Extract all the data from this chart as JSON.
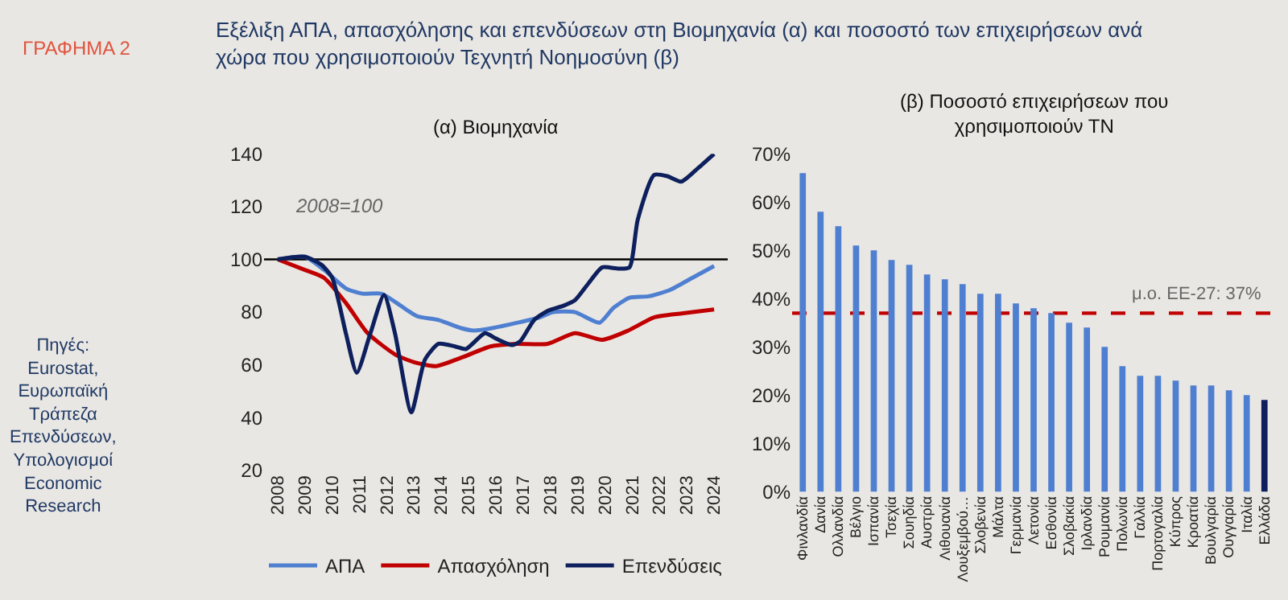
{
  "chart_data": [
    {
      "type": "line",
      "title": "(α) Βιομηχανία",
      "annotations": [
        "ΓΡΑΦΗΜΑ 2",
        "Εξέλιξη ΑΠΑ, απασχόλησης και επενδύσεων στη Βιομηχανία (α) και ποσοστό των επιχειρήσεων ανά χώρα που χρησιμοποιούν Τεχνητή Νοημοσύνη (β)",
        "Πηγές: Eurostat, Ευρωπαϊκή Τράπεζα Επενδύσεων, Υπολογισμοί Economic Research",
        "2008=100"
      ],
      "xlim": [
        2007.5,
        2024.5
      ],
      "xticks": [
        2008,
        2009,
        2010,
        2011,
        2012,
        2013,
        2014,
        2015,
        2016,
        2017,
        2018,
        2019,
        2020,
        2021,
        2022,
        2023,
        2024
      ],
      "ylim": [
        20,
        140
      ],
      "yticks": [
        20,
        40,
        60,
        80,
        100,
        120,
        140
      ],
      "legend": "bottom",
      "ref_lines": [
        {
          "axis": "y",
          "value": 100,
          "color": "#000000",
          "line_style": "solid"
        }
      ],
      "series": [
        {
          "name": "ΑΠΑ",
          "color": "#4f7fd0",
          "x": [
            2008,
            2009,
            2009.7,
            2010.5,
            2011.1,
            2011.8,
            2012.5,
            2013.1,
            2013.9,
            2014.7,
            2015.2,
            2015.9,
            2016.8,
            2017.6,
            2018.1,
            2018.9,
            2019.8,
            2020.3,
            2020.9,
            2021.6,
            2022.4,
            2023.2,
            2024
          ],
          "values": [
            100,
            101,
            96,
            89,
            87,
            87,
            82.5,
            78.5,
            77,
            74,
            73,
            74,
            76,
            78,
            80,
            80,
            76,
            81.5,
            85.5,
            86,
            88.5,
            93,
            97.5
          ]
        },
        {
          "name": "Απασχόληση",
          "color": "#c00000",
          "x": [
            2008,
            2009,
            2009.7,
            2010.5,
            2011.3,
            2012.3,
            2013,
            2013.8,
            2014.8,
            2015.8,
            2016.75,
            2017.9,
            2018.9,
            2019.9,
            2020.85,
            2021.8,
            2022.8,
            2024
          ],
          "values": [
            100,
            96,
            93,
            83.5,
            72,
            64,
            61,
            59.5,
            63,
            67,
            68,
            68,
            72,
            69.5,
            73,
            78,
            79.5,
            81
          ]
        },
        {
          "name": "Επενδύσεις",
          "color": "#0d1f5c",
          "x": [
            2008,
            2009,
            2009.6,
            2010,
            2010.5,
            2010.9,
            2011.4,
            2011.9,
            2012.3,
            2012.9,
            2013.4,
            2013.9,
            2014.5,
            2014.9,
            2015.6,
            2016,
            2016.6,
            2016.9,
            2017.4,
            2017.9,
            2018.5,
            2018.9,
            2019.4,
            2019.9,
            2020.5,
            2020.9,
            2021.2,
            2021.8,
            2022.3,
            2022.8,
            2023.4,
            2024
          ],
          "values": [
            100,
            101,
            98,
            93,
            72,
            57,
            72,
            86.5,
            72,
            42,
            62,
            68,
            67,
            66,
            72,
            70,
            67.5,
            69,
            77,
            80.5,
            82.5,
            84.5,
            91,
            97,
            96.5,
            97,
            115,
            132,
            131.5,
            129.5,
            134.5,
            140
          ]
        }
      ]
    },
    {
      "type": "bar",
      "title": "(β) Ποσοστό επιχειρήσεων που χρησιμοποιούν ΤΝ",
      "categories": [
        "Φινλανδία",
        "Δανία",
        "Ολλανδία",
        "Βέλγιο",
        "Ισπανία",
        "Τσεχία",
        "Σουηδία",
        "Αυστρία",
        "Λιθουανία",
        "Λουξεμβού…",
        "Σλοβενία",
        "Μάλτα",
        "Γερμανία",
        "Λετονία",
        "Εσθονία",
        "Σλοβακία",
        "Ιρλανδία",
        "Ρουμανία",
        "Πολωνία",
        "Γαλλία",
        "Πορτογαλία",
        "Κύπρος",
        "Κροατία",
        "Βουλγαρία",
        "Ουγγαρία",
        "Ιταλία",
        "Ελλάδα"
      ],
      "values": [
        66,
        58,
        55,
        51,
        50,
        48,
        47,
        45,
        44,
        43,
        41,
        41,
        39,
        38,
        37,
        35,
        34,
        30,
        26,
        24,
        24,
        23,
        22,
        22,
        21,
        20,
        19
      ],
      "colors": [
        "#4f7fd0",
        "#4f7fd0",
        "#4f7fd0",
        "#4f7fd0",
        "#4f7fd0",
        "#4f7fd0",
        "#4f7fd0",
        "#4f7fd0",
        "#4f7fd0",
        "#4f7fd0",
        "#4f7fd0",
        "#4f7fd0",
        "#4f7fd0",
        "#4f7fd0",
        "#4f7fd0",
        "#4f7fd0",
        "#4f7fd0",
        "#4f7fd0",
        "#4f7fd0",
        "#4f7fd0",
        "#4f7fd0",
        "#4f7fd0",
        "#4f7fd0",
        "#4f7fd0",
        "#4f7fd0",
        "#4f7fd0",
        "#0d1f5c"
      ],
      "ylim": [
        0,
        70
      ],
      "yticks": [
        {
          "value": 0,
          "label": "0%"
        },
        {
          "value": 10,
          "label": "10%"
        },
        {
          "value": 20,
          "label": "20%"
        },
        {
          "value": 30,
          "label": "30%"
        },
        {
          "value": 40,
          "label": "40%"
        },
        {
          "value": 50,
          "label": "50%"
        },
        {
          "value": 60,
          "label": "60%"
        },
        {
          "value": 70,
          "label": "70%"
        }
      ],
      "ref_lines": [
        {
          "axis": "y",
          "value": 37,
          "label": "μ.ο. ΕΕ-27: 37%",
          "color": "#c00000",
          "line_style": "dashed"
        }
      ]
    }
  ]
}
